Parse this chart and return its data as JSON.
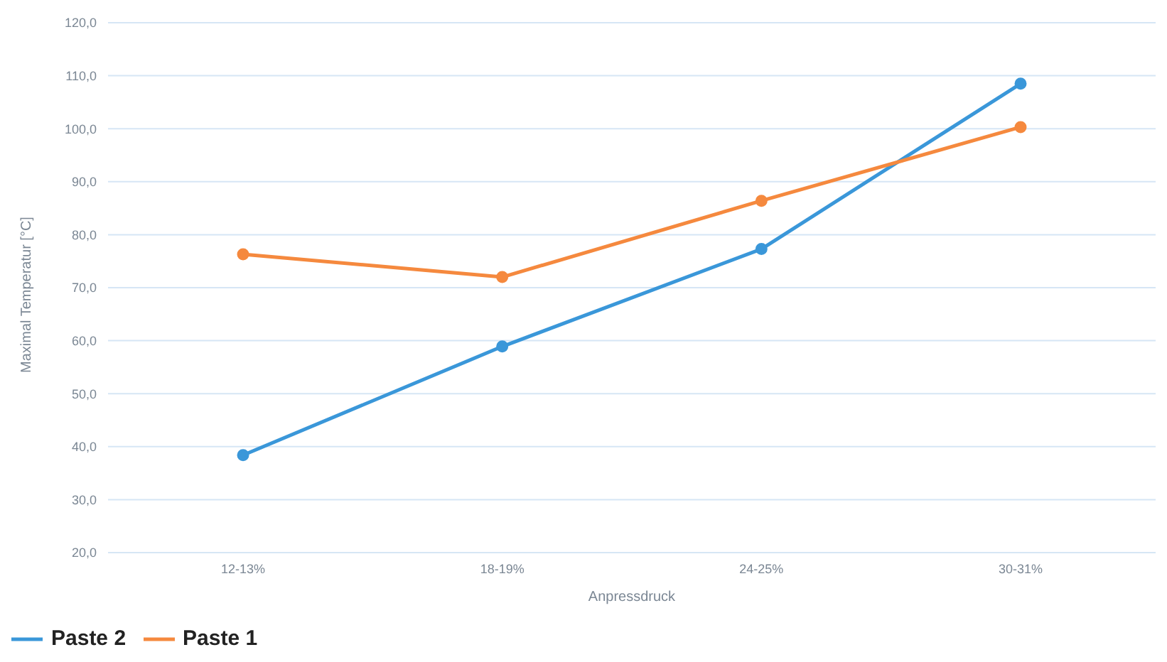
{
  "chart_data": {
    "type": "line",
    "xlabel": "Anpressdruck",
    "ylabel": "Maximal Temperatur [°C]",
    "categories": [
      "12-13%",
      "18-19%",
      "24-25%",
      "30-31%"
    ],
    "series": [
      {
        "name": "Paste 2",
        "color": "#3a97d9",
        "values": [
          38.4,
          58.9,
          77.3,
          108.5
        ]
      },
      {
        "name": "Paste 1",
        "color": "#f5893e",
        "values": [
          76.3,
          72.0,
          86.4,
          100.3
        ]
      }
    ],
    "ylim": [
      20,
      120
    ],
    "yticks": [
      {
        "value": 20,
        "label": "20,0"
      },
      {
        "value": 30,
        "label": "30,0"
      },
      {
        "value": 40,
        "label": "40,0"
      },
      {
        "value": 50,
        "label": "50,0"
      },
      {
        "value": 60,
        "label": "60,0"
      },
      {
        "value": 70,
        "label": "70,0"
      },
      {
        "value": 80,
        "label": "80,0"
      },
      {
        "value": 90,
        "label": "90,0"
      },
      {
        "value": 100,
        "label": "100,0"
      },
      {
        "value": 110,
        "label": "110,0"
      },
      {
        "value": 120,
        "label": "120,0"
      }
    ],
    "grid": "y",
    "legend": "bottom left",
    "marker": "circle",
    "line_style": "solid"
  }
}
